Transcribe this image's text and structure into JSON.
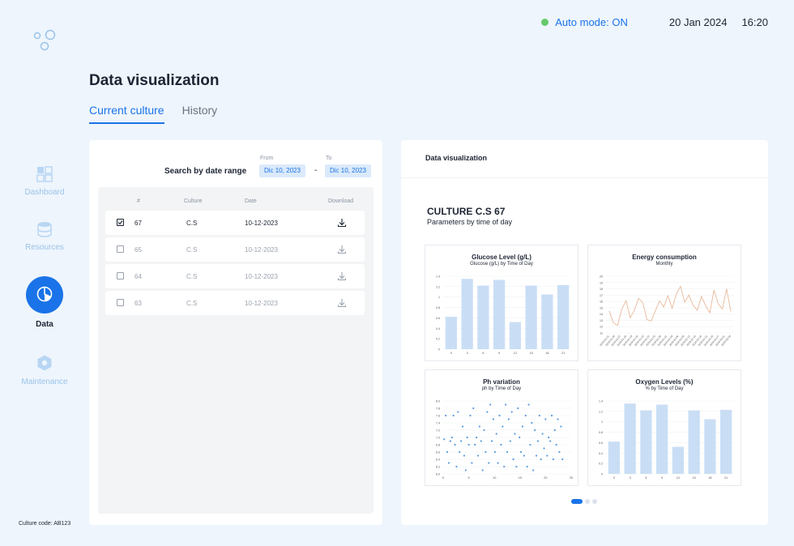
{
  "status": {
    "auto_mode": "Auto mode: ON",
    "date": "20 Jan 2024",
    "time": "16:20",
    "indicator_color": "#66c96a"
  },
  "sidebar": {
    "items": [
      {
        "label": "Dashboard",
        "icon": "grid-icon",
        "active": false
      },
      {
        "label": "Resources",
        "icon": "database-icon",
        "active": false
      },
      {
        "label": "Data",
        "icon": "pie-chart-icon",
        "active": true
      },
      {
        "label": "Maintenance",
        "icon": "hexagon-gear-icon",
        "active": false
      }
    ],
    "culture_code": "Culture code: AB123"
  },
  "page": {
    "title": "Data visualization",
    "tabs": [
      {
        "label": "Current culture",
        "active": true
      },
      {
        "label": "History",
        "active": false
      }
    ]
  },
  "search": {
    "label": "Search by date range",
    "from_label": "From",
    "from_value": "Dic 10, 2023",
    "to_label": "To",
    "to_value": "Dic 10, 2023",
    "separator": "-"
  },
  "table": {
    "columns": [
      "#",
      "Culture",
      "Date",
      "Download"
    ],
    "rows": [
      {
        "num": "67",
        "culture": "C.S",
        "date": "10-12-2023",
        "checked": true
      },
      {
        "num": "65",
        "culture": "C.S",
        "date": "10-12-2023",
        "checked": false
      },
      {
        "num": "64",
        "culture": "C.S",
        "date": "10-12-2023",
        "checked": false
      },
      {
        "num": "63",
        "culture": "C.S",
        "date": "10-12-2023",
        "checked": false
      }
    ]
  },
  "viz": {
    "header": "Data visualization",
    "culture_title": "CULTURE C.S 67",
    "culture_subtitle": "Parameters by time of day",
    "pager": {
      "pages": 3,
      "current": 1
    }
  },
  "colors": {
    "accent": "#1a73e8",
    "bar": "#c9def5",
    "line": "#e8b89a",
    "dot": "#5b9be0"
  },
  "chart_data": [
    {
      "type": "bar",
      "title": "Glucose Level (g/L)",
      "subtitle": "Glucose (g/L) by Time of Day",
      "categories": [
        "0",
        "3",
        "6",
        "9",
        "12",
        "15",
        "18",
        "21"
      ],
      "values": [
        0.62,
        1.35,
        1.22,
        1.33,
        0.52,
        1.22,
        1.05,
        1.23
      ],
      "yticks": [
        "0",
        "0.2",
        "0.4",
        "0.6",
        "0.8",
        "1",
        "1.2",
        "1.4"
      ],
      "ylim": [
        0,
        1.4
      ]
    },
    {
      "type": "line",
      "title": "Energy consumption",
      "subtitle": "Monthly",
      "values": [
        14.5,
        12.6,
        12.2,
        14.8,
        16.1,
        13.4,
        14.6,
        16.5,
        15.8,
        13.1,
        12.9,
        14.5,
        16.1,
        15.1,
        16.9,
        14.9,
        17.2,
        18.4,
        15.9,
        17.0,
        15.4,
        14.6,
        16.8,
        15.3,
        14.2,
        17.8,
        15.6,
        14.8,
        18.0,
        14.4
      ],
      "x_tick_labels": [
        "2024-01-01",
        "2024-01-04",
        "2024-01-07",
        "2024-01-10",
        "2024-01-13",
        "2024-01-16",
        "2024-01-19",
        "2024-01-22",
        "2024-01-25",
        "2024-01-28",
        "2024-01-31",
        "2024-02-03",
        "2024-02-06",
        "2024-02-09",
        "2024-02-12",
        "2024-02-15",
        "2024-02-18",
        "2024-02-21",
        "2024-02-24",
        "2024-02-27",
        "2024-03-01",
        "2024-03-04"
      ],
      "yticks": [
        "11",
        "12",
        "13",
        "14",
        "15",
        "16",
        "17",
        "18",
        "19",
        "20"
      ],
      "ylim": [
        11,
        20
      ]
    },
    {
      "type": "scatter",
      "title": "Ph variation",
      "subtitle": "ph by Time of Day",
      "points": [
        [
          0.2,
          6.95
        ],
        [
          0.5,
          7.6
        ],
        [
          0.8,
          6.6
        ],
        [
          1.1,
          6.3
        ],
        [
          1.4,
          6.9
        ],
        [
          1.7,
          7.0
        ],
        [
          2.0,
          7.6
        ],
        [
          2.3,
          6.8
        ],
        [
          2.6,
          6.2
        ],
        [
          2.9,
          7.7
        ],
        [
          3.2,
          6.6
        ],
        [
          3.5,
          6.9
        ],
        [
          3.8,
          7.3
        ],
        [
          4.1,
          6.5
        ],
        [
          4.4,
          6.1
        ],
        [
          4.7,
          7.0
        ],
        [
          5.0,
          6.8
        ],
        [
          5.3,
          7.6
        ],
        [
          5.6,
          6.3
        ],
        [
          5.9,
          7.8
        ],
        [
          6.2,
          6.8
        ],
        [
          6.5,
          7.0
        ],
        [
          6.8,
          6.5
        ],
        [
          7.1,
          7.3
        ],
        [
          7.4,
          6.9
        ],
        [
          7.7,
          6.1
        ],
        [
          8.0,
          7.2
        ],
        [
          8.3,
          6.6
        ],
        [
          8.6,
          7.7
        ],
        [
          8.9,
          6.3
        ],
        [
          9.2,
          7.9
        ],
        [
          9.5,
          6.9
        ],
        [
          9.8,
          7.5
        ],
        [
          10.1,
          6.6
        ],
        [
          10.4,
          7.1
        ],
        [
          10.7,
          6.3
        ],
        [
          11.0,
          7.6
        ],
        [
          11.3,
          6.8
        ],
        [
          11.6,
          7.3
        ],
        [
          11.9,
          6.2
        ],
        [
          12.2,
          7.9
        ],
        [
          12.5,
          6.6
        ],
        [
          12.8,
          7.5
        ],
        [
          13.1,
          6.9
        ],
        [
          13.4,
          7.7
        ],
        [
          13.7,
          6.4
        ],
        [
          14.0,
          7.1
        ],
        [
          14.3,
          6.2
        ],
        [
          14.6,
          7.8
        ],
        [
          14.9,
          7.0
        ],
        [
          15.2,
          6.6
        ],
        [
          15.5,
          7.3
        ],
        [
          15.8,
          6.5
        ],
        [
          16.1,
          7.6
        ],
        [
          16.4,
          6.2
        ],
        [
          16.7,
          7.9
        ],
        [
          17.0,
          6.8
        ],
        [
          17.3,
          7.4
        ],
        [
          17.6,
          6.1
        ],
        [
          17.9,
          7.2
        ],
        [
          18.2,
          6.5
        ],
        [
          18.5,
          6.9
        ],
        [
          18.8,
          7.6
        ],
        [
          19.1,
          6.4
        ],
        [
          19.4,
          7.1
        ],
        [
          19.7,
          6.7
        ],
        [
          20.0,
          7.5
        ],
        [
          20.3,
          6.5
        ],
        [
          20.6,
          7.0
        ],
        [
          20.9,
          6.9
        ],
        [
          21.2,
          7.6
        ],
        [
          21.5,
          6.4
        ],
        [
          21.8,
          7.2
        ],
        [
          22.1,
          6.8
        ],
        [
          22.4,
          7.5
        ],
        [
          22.7,
          6.6
        ],
        [
          23.0,
          7.3
        ],
        [
          23.3,
          6.4
        ]
      ],
      "xticks": [
        "0",
        "5",
        "10",
        "15",
        "20",
        "25"
      ],
      "yticks": [
        "6.0",
        "6.2",
        "6.4",
        "6.6",
        "6.8",
        "7.0",
        "7.2",
        "7.4",
        "7.6",
        "7.8",
        "8.0"
      ],
      "xlim": [
        0,
        25
      ],
      "ylim": [
        6.0,
        8.0
      ]
    },
    {
      "type": "bar",
      "title": "Oxygen Levels (%)",
      "subtitle": "% by Time of Day",
      "categories": [
        "0",
        "3",
        "6",
        "9",
        "12",
        "15",
        "18",
        "21"
      ],
      "values": [
        0.62,
        1.35,
        1.22,
        1.33,
        0.52,
        1.22,
        1.05,
        1.23
      ],
      "yticks": [
        "0",
        "0.2",
        "0.4",
        "0.6",
        "0.8",
        "1",
        "1.2",
        "1.4"
      ],
      "ylim": [
        0,
        1.4
      ]
    }
  ]
}
